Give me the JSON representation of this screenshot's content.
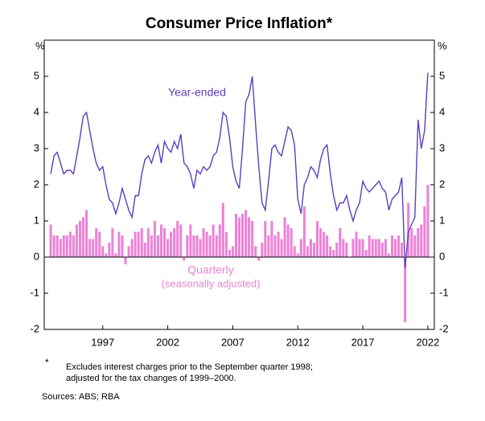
{
  "chart_data": {
    "type": "bar",
    "title": "Consumer Price Inflation*",
    "ylabel": "%",
    "xlim": [
      1992.5,
      2022.5
    ],
    "ylim": [
      -2,
      6
    ],
    "yticks": [
      -2,
      -1,
      0,
      1,
      2,
      3,
      4,
      5
    ],
    "xticks": [
      1997,
      2002,
      2007,
      2012,
      2017,
      2022
    ],
    "x": [
      1993.0,
      1993.25,
      1993.5,
      1993.75,
      1994.0,
      1994.25,
      1994.5,
      1994.75,
      1995.0,
      1995.25,
      1995.5,
      1995.75,
      1996.0,
      1996.25,
      1996.5,
      1996.75,
      1997.0,
      1997.25,
      1997.5,
      1997.75,
      1998.0,
      1998.25,
      1998.5,
      1998.75,
      1999.0,
      1999.25,
      1999.5,
      1999.75,
      2000.0,
      2000.25,
      2000.5,
      2000.75,
      2001.0,
      2001.25,
      2001.5,
      2001.75,
      2002.0,
      2002.25,
      2002.5,
      2002.75,
      2003.0,
      2003.25,
      2003.5,
      2003.75,
      2004.0,
      2004.25,
      2004.5,
      2004.75,
      2005.0,
      2005.25,
      2005.5,
      2005.75,
      2006.0,
      2006.25,
      2006.5,
      2006.75,
      2007.0,
      2007.25,
      2007.5,
      2007.75,
      2008.0,
      2008.25,
      2008.5,
      2008.75,
      2009.0,
      2009.25,
      2009.5,
      2009.75,
      2010.0,
      2010.25,
      2010.5,
      2010.75,
      2011.0,
      2011.25,
      2011.5,
      2011.75,
      2012.0,
      2012.25,
      2012.5,
      2012.75,
      2013.0,
      2013.25,
      2013.5,
      2013.75,
      2014.0,
      2014.25,
      2014.5,
      2014.75,
      2015.0,
      2015.25,
      2015.5,
      2015.75,
      2016.0,
      2016.25,
      2016.5,
      2016.75,
      2017.0,
      2017.25,
      2017.5,
      2017.75,
      2018.0,
      2018.25,
      2018.5,
      2018.75,
      2019.0,
      2019.25,
      2019.5,
      2019.75,
      2020.0,
      2020.25,
      2020.5,
      2020.75,
      2021.0,
      2021.25,
      2021.5,
      2021.75,
      2022.0
    ],
    "series": [
      {
        "name": "Year-ended",
        "type": "line",
        "color": "#5a3fc0",
        "values": [
          2.3,
          2.8,
          2.9,
          2.6,
          2.3,
          2.4,
          2.4,
          2.3,
          2.8,
          3.3,
          3.9,
          4.0,
          3.5,
          3.0,
          2.6,
          2.4,
          2.5,
          2.0,
          1.6,
          1.5,
          1.2,
          1.5,
          1.9,
          1.6,
          1.3,
          1.1,
          1.7,
          1.7,
          2.3,
          2.7,
          2.8,
          2.6,
          2.9,
          3.1,
          2.6,
          3.2,
          3.0,
          2.9,
          3.2,
          3.0,
          3.4,
          2.6,
          2.5,
          2.3,
          1.9,
          2.4,
          2.3,
          2.5,
          2.4,
          2.5,
          2.8,
          2.9,
          3.3,
          4.0,
          3.9,
          3.3,
          2.5,
          2.1,
          1.9,
          3.0,
          4.3,
          4.5,
          5.0,
          3.7,
          2.5,
          1.5,
          1.3,
          2.1,
          3.0,
          3.1,
          2.9,
          2.8,
          3.2,
          3.6,
          3.5,
          3.1,
          1.6,
          1.2,
          2.0,
          2.2,
          2.5,
          2.4,
          2.2,
          2.7,
          3.0,
          3.1,
          2.3,
          1.7,
          1.3,
          1.5,
          1.5,
          1.7,
          1.3,
          1.0,
          1.3,
          1.5,
          2.1,
          1.9,
          1.8,
          1.9,
          2.0,
          2.1,
          1.9,
          1.8,
          1.3,
          1.6,
          1.7,
          1.8,
          2.2,
          -0.3,
          0.7,
          0.9,
          1.1,
          3.8,
          3.0,
          3.5,
          5.1
        ]
      },
      {
        "name": "Quarterly",
        "note": "(seasonally adjusted)",
        "type": "bar",
        "color": "#ec82d6",
        "values": [
          0.9,
          0.6,
          0.6,
          0.5,
          0.6,
          0.6,
          0.7,
          0.6,
          0.9,
          1.0,
          1.1,
          1.3,
          0.5,
          0.5,
          0.8,
          0.7,
          0.3,
          0.1,
          0.4,
          0.8,
          0.1,
          0.7,
          0.6,
          -0.2,
          0.3,
          0.5,
          0.7,
          0.7,
          0.8,
          0.4,
          0.8,
          0.6,
          1.0,
          0.6,
          0.9,
          0.8,
          0.5,
          0.7,
          0.8,
          1.0,
          0.9,
          -0.1,
          0.6,
          0.9,
          0.6,
          0.6,
          0.5,
          0.8,
          0.7,
          0.6,
          0.9,
          0.6,
          0.9,
          1.5,
          0.7,
          0.2,
          0.3,
          1.2,
          1.1,
          1.2,
          1.3,
          1.1,
          1.0,
          0.3,
          -0.1,
          0.4,
          1.0,
          0.6,
          1.0,
          0.6,
          0.7,
          0.5,
          1.1,
          0.9,
          0.8,
          0.3,
          0.1,
          0.5,
          1.4,
          0.3,
          0.5,
          0.4,
          1.0,
          0.8,
          0.7,
          0.6,
          0.3,
          0.2,
          0.4,
          0.8,
          0.5,
          0.4,
          0.0,
          0.5,
          0.7,
          0.5,
          0.5,
          0.2,
          0.6,
          0.5,
          0.5,
          0.5,
          0.4,
          0.5,
          0.1,
          0.6,
          0.5,
          0.6,
          0.4,
          -1.8,
          1.5,
          0.8,
          0.6,
          0.8,
          0.9,
          1.4,
          2.0
        ]
      }
    ],
    "footnote_marker": "*",
    "footnote": [
      "Excludes interest charges prior to the September quarter 1998;",
      "adjusted for the tax changes of 1999–2000."
    ],
    "source": "Sources: ABS; RBA"
  }
}
